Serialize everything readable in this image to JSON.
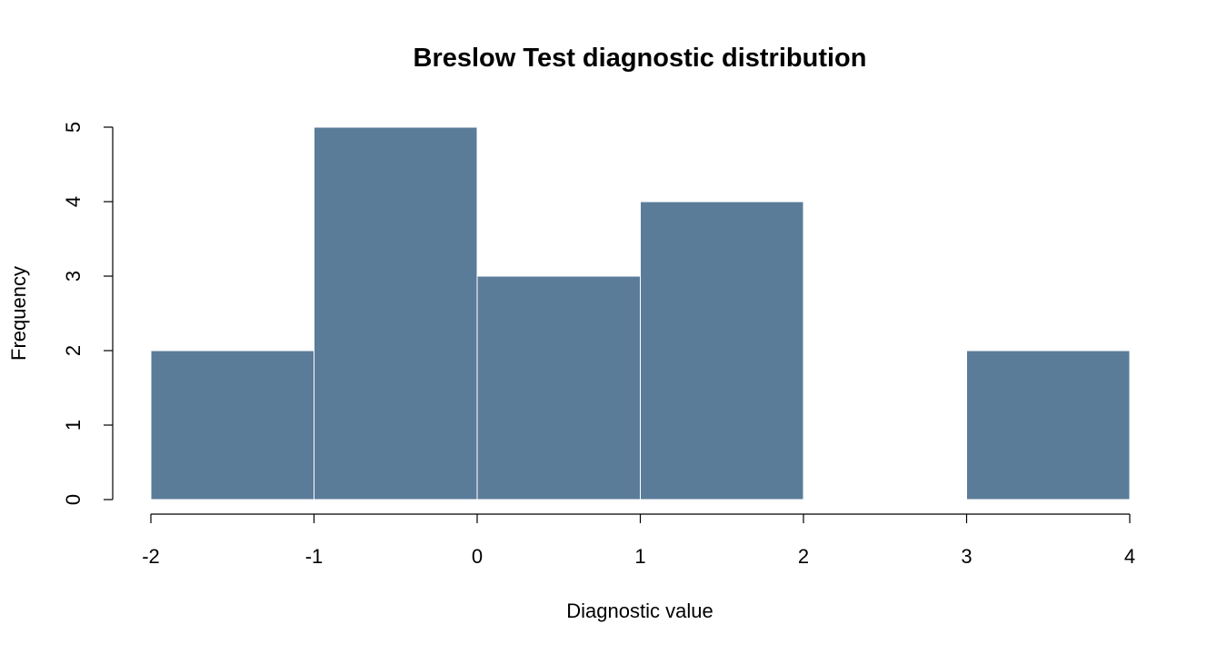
{
  "chart_data": {
    "type": "bar",
    "title": "Breslow Test diagnostic distribution",
    "xlabel": "Diagnostic value",
    "ylabel": "Frequency",
    "bins": [
      {
        "from": -2,
        "to": -1,
        "count": 2
      },
      {
        "from": -1,
        "to": 0,
        "count": 5
      },
      {
        "from": 0,
        "to": 1,
        "count": 3
      },
      {
        "from": 1,
        "to": 2,
        "count": 4
      },
      {
        "from": 2,
        "to": 3,
        "count": 0
      },
      {
        "from": 3,
        "to": 4,
        "count": 2
      }
    ],
    "xlim": [
      -2,
      4
    ],
    "ylim": [
      0,
      5
    ],
    "x_ticks": [
      -2,
      -1,
      0,
      1,
      2,
      3,
      4
    ],
    "y_ticks": [
      0,
      1,
      2,
      3,
      4,
      5
    ],
    "bar_color": "#5b7c99",
    "grid": false
  }
}
